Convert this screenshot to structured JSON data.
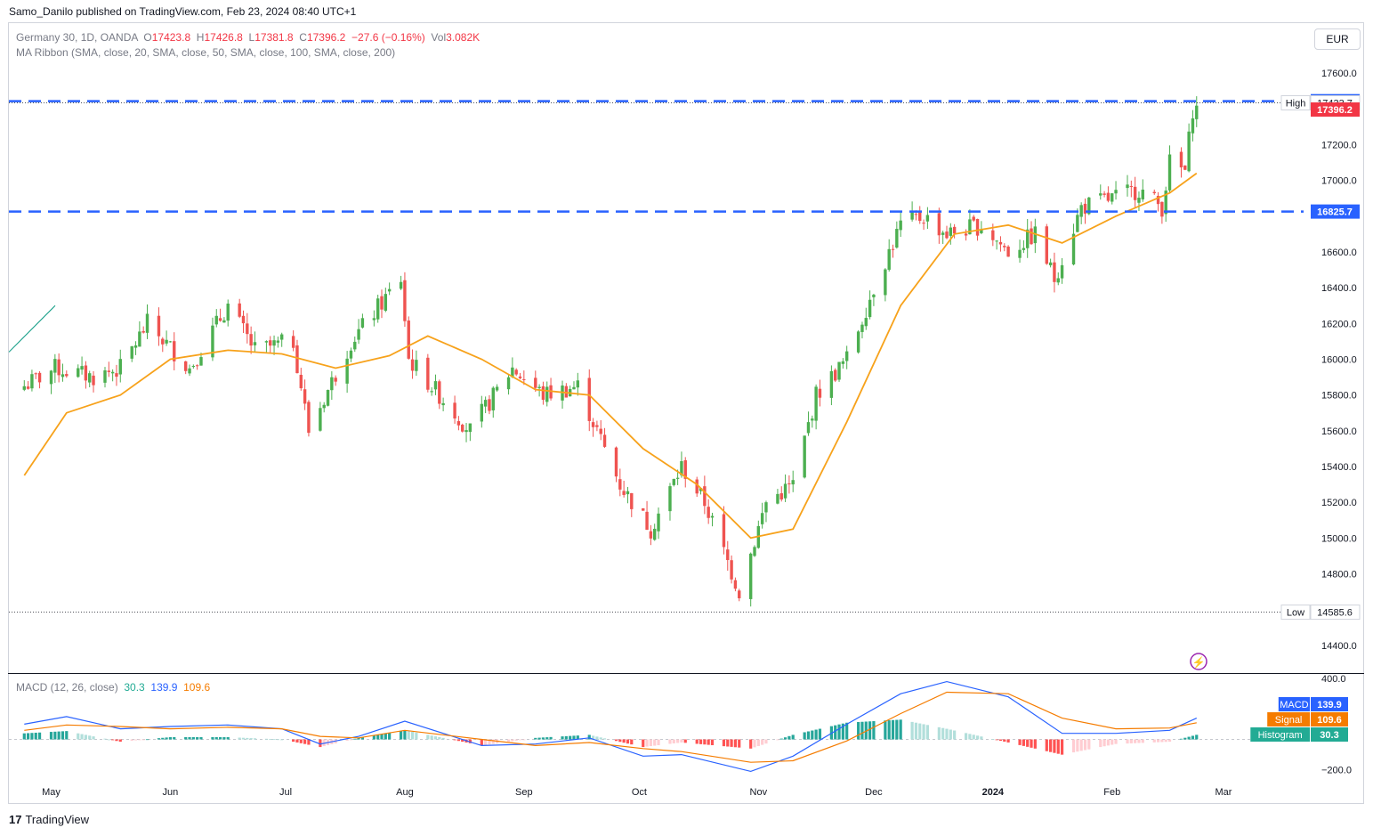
{
  "header": {
    "published_by": "Samo_Danilo published on TradingView.com, Feb 23, 2024 08:40 UTC+1"
  },
  "legend": {
    "symbol": "Germany 30, 1D, OANDA",
    "open_label": "O",
    "open": "17423.8",
    "high_label": "H",
    "high": "17426.8",
    "low_label": "L",
    "low": "17381.8",
    "close_label": "C",
    "close": "17396.2",
    "change": "−27.6 (−0.16%)",
    "vol_label": "Vol",
    "vol": "3.082K",
    "ma_ribbon": "MA Ribbon (SMA, close, 20, SMA, close, 50, SMA, close, 100, SMA, close, 200)"
  },
  "currency": "EUR",
  "macd_legend": {
    "name": "MACD (12, 26, close)",
    "histogram": "30.3",
    "macd": "139.9",
    "signal": "109.6"
  },
  "footer": {
    "brand": "TradingView"
  },
  "colors": {
    "up": "#22ab94",
    "up_candle": "#4caf50",
    "down": "#ef5350",
    "ma20": "#f7a21b",
    "level": "#2962ff",
    "macd_line": "#2962ff",
    "signal_line": "#f57c00"
  },
  "chart_data": [
    {
      "type": "candlestick",
      "title": "Germany 30, 1D, OANDA",
      "y_ticks": [
        "17600.0",
        "17200.0",
        "17000.0",
        "16600.0",
        "16400.0",
        "16200.0",
        "16000.0",
        "15800.0",
        "15600.0",
        "15400.0",
        "15200.0",
        "15000.0",
        "14800.0",
        "14400.0"
      ],
      "x_ticks": [
        "May",
        "Jun",
        "Jul",
        "Aug",
        "Sep",
        "Oct",
        "Nov",
        "Dec",
        "2024",
        "Feb",
        "Mar"
      ],
      "ylim": [
        14250,
        17700
      ],
      "levels": [
        {
          "value": 17442.8,
          "label": "17442.8",
          "style": "dashed",
          "color": "#2962ff"
        },
        {
          "value": 16825.7,
          "label": "16825.7",
          "style": "dashed",
          "color": "#2962ff"
        }
      ],
      "price_labels": [
        {
          "name": "High",
          "value": 17433.7,
          "label": "17433.7"
        },
        {
          "name": "Close",
          "value": 17396.2,
          "label": "17396.2"
        },
        {
          "name": "Low",
          "value": 14585.6,
          "label": "14585.6"
        }
      ],
      "high_text": "High",
      "low_text": "Low",
      "close_anchors": [
        {
          "date": "2023-04-24",
          "close": 15850
        },
        {
          "date": "2023-05-02",
          "close": 15950
        },
        {
          "date": "2023-05-12",
          "close": 15900
        },
        {
          "date": "2023-05-19",
          "close": 15950
        },
        {
          "date": "2023-05-26",
          "close": 16200
        },
        {
          "date": "2023-06-06",
          "close": 15950
        },
        {
          "date": "2023-06-16",
          "close": 16300
        },
        {
          "date": "2023-06-23",
          "close": 16050
        },
        {
          "date": "2023-07-03",
          "close": 16100
        },
        {
          "date": "2023-07-07",
          "close": 15600
        },
        {
          "date": "2023-07-18",
          "close": 16100
        },
        {
          "date": "2023-07-31",
          "close": 16450
        },
        {
          "date": "2023-08-02",
          "close": 16000
        },
        {
          "date": "2023-08-18",
          "close": 15600
        },
        {
          "date": "2023-08-29",
          "close": 15950
        },
        {
          "date": "2023-09-06",
          "close": 15800
        },
        {
          "date": "2023-09-15",
          "close": 15850
        },
        {
          "date": "2023-09-26",
          "close": 15300
        },
        {
          "date": "2023-10-04",
          "close": 15050
        },
        {
          "date": "2023-10-12",
          "close": 15400
        },
        {
          "date": "2023-10-18",
          "close": 15200
        },
        {
          "date": "2023-10-27",
          "close": 14700
        },
        {
          "date": "2023-11-03",
          "close": 15200
        },
        {
          "date": "2023-11-10",
          "close": 15300
        },
        {
          "date": "2023-11-16",
          "close": 15800
        },
        {
          "date": "2023-11-24",
          "close": 16000
        },
        {
          "date": "2023-12-01",
          "close": 16400
        },
        {
          "date": "2023-12-08",
          "close": 16750
        },
        {
          "date": "2023-12-14",
          "close": 16800
        },
        {
          "date": "2023-12-20",
          "close": 16700
        },
        {
          "date": "2023-12-29",
          "close": 16750
        },
        {
          "date": "2024-01-05",
          "close": 16600
        },
        {
          "date": "2024-01-12",
          "close": 16700
        },
        {
          "date": "2024-01-17",
          "close": 16450
        },
        {
          "date": "2024-01-24",
          "close": 16850
        },
        {
          "date": "2024-02-01",
          "close": 16900
        },
        {
          "date": "2024-02-08",
          "close": 16950
        },
        {
          "date": "2024-02-14",
          "close": 16850
        },
        {
          "date": "2024-02-16",
          "close": 17100
        },
        {
          "date": "2024-02-20",
          "close": 17050
        },
        {
          "date": "2024-02-22",
          "close": 17400
        },
        {
          "date": "2024-02-23",
          "close": 17396.2
        }
      ],
      "series": [
        {
          "name": "SMA 20",
          "points": [
            [
              "2023-04-24",
              15350
            ],
            [
              "2023-05-05",
              15700
            ],
            [
              "2023-05-19",
              15800
            ],
            [
              "2023-06-01",
              16000
            ],
            [
              "2023-06-16",
              16050
            ],
            [
              "2023-06-30",
              16030
            ],
            [
              "2023-07-14",
              15950
            ],
            [
              "2023-07-28",
              16020
            ],
            [
              "2023-08-07",
              16130
            ],
            [
              "2023-08-21",
              16000
            ],
            [
              "2023-09-04",
              15830
            ],
            [
              "2023-09-18",
              15800
            ],
            [
              "2023-10-02",
              15500
            ],
            [
              "2023-10-16",
              15300
            ],
            [
              "2023-10-30",
              15000
            ],
            [
              "2023-11-10",
              15050
            ],
            [
              "2023-11-24",
              15650
            ],
            [
              "2023-12-08",
              16300
            ],
            [
              "2023-12-22",
              16700
            ],
            [
              "2024-01-05",
              16750
            ],
            [
              "2024-01-19",
              16650
            ],
            [
              "2024-02-02",
              16800
            ],
            [
              "2024-02-16",
              16930
            ],
            [
              "2024-02-23",
              17040
            ]
          ]
        }
      ]
    },
    {
      "type": "line",
      "title": "MACD (12, 26, close)",
      "y_ticks": [
        "400.0",
        "−200.0"
      ],
      "ylim": [
        -260,
        430
      ],
      "series": [
        {
          "name": "MACD",
          "value_label": "139.9",
          "points": [
            [
              "2023-04-24",
              100
            ],
            [
              "2023-05-05",
              150
            ],
            [
              "2023-05-19",
              70
            ],
            [
              "2023-06-01",
              85
            ],
            [
              "2023-06-16",
              95
            ],
            [
              "2023-06-30",
              70
            ],
            [
              "2023-07-10",
              -30
            ],
            [
              "2023-07-20",
              20
            ],
            [
              "2023-08-01",
              120
            ],
            [
              "2023-08-21",
              -40
            ],
            [
              "2023-09-04",
              -30
            ],
            [
              "2023-09-18",
              10
            ],
            [
              "2023-10-02",
              -110
            ],
            [
              "2023-10-12",
              -100
            ],
            [
              "2023-10-30",
              -210
            ],
            [
              "2023-11-10",
              -110
            ],
            [
              "2023-11-24",
              100
            ],
            [
              "2023-12-08",
              300
            ],
            [
              "2023-12-20",
              380
            ],
            [
              "2024-01-05",
              280
            ],
            [
              "2024-01-19",
              40
            ],
            [
              "2024-02-02",
              40
            ],
            [
              "2024-02-16",
              60
            ],
            [
              "2024-02-23",
              139.9
            ]
          ]
        },
        {
          "name": "Signal",
          "value_label": "109.6",
          "points": [
            [
              "2023-04-24",
              60
            ],
            [
              "2023-05-05",
              95
            ],
            [
              "2023-05-19",
              85
            ],
            [
              "2023-06-01",
              70
            ],
            [
              "2023-06-16",
              80
            ],
            [
              "2023-06-30",
              70
            ],
            [
              "2023-07-10",
              20
            ],
            [
              "2023-07-20",
              10
            ],
            [
              "2023-08-01",
              60
            ],
            [
              "2023-08-21",
              0
            ],
            [
              "2023-09-04",
              -40
            ],
            [
              "2023-09-18",
              -20
            ],
            [
              "2023-10-02",
              -60
            ],
            [
              "2023-10-12",
              -80
            ],
            [
              "2023-10-30",
              -150
            ],
            [
              "2023-11-10",
              -140
            ],
            [
              "2023-11-24",
              -10
            ],
            [
              "2023-12-08",
              170
            ],
            [
              "2023-12-20",
              310
            ],
            [
              "2024-01-05",
              300
            ],
            [
              "2024-01-19",
              140
            ],
            [
              "2024-02-02",
              70
            ],
            [
              "2024-02-16",
              75
            ],
            [
              "2024-02-23",
              109.6
            ]
          ]
        },
        {
          "name": "Histogram",
          "value_label": "30.3"
        }
      ]
    }
  ]
}
